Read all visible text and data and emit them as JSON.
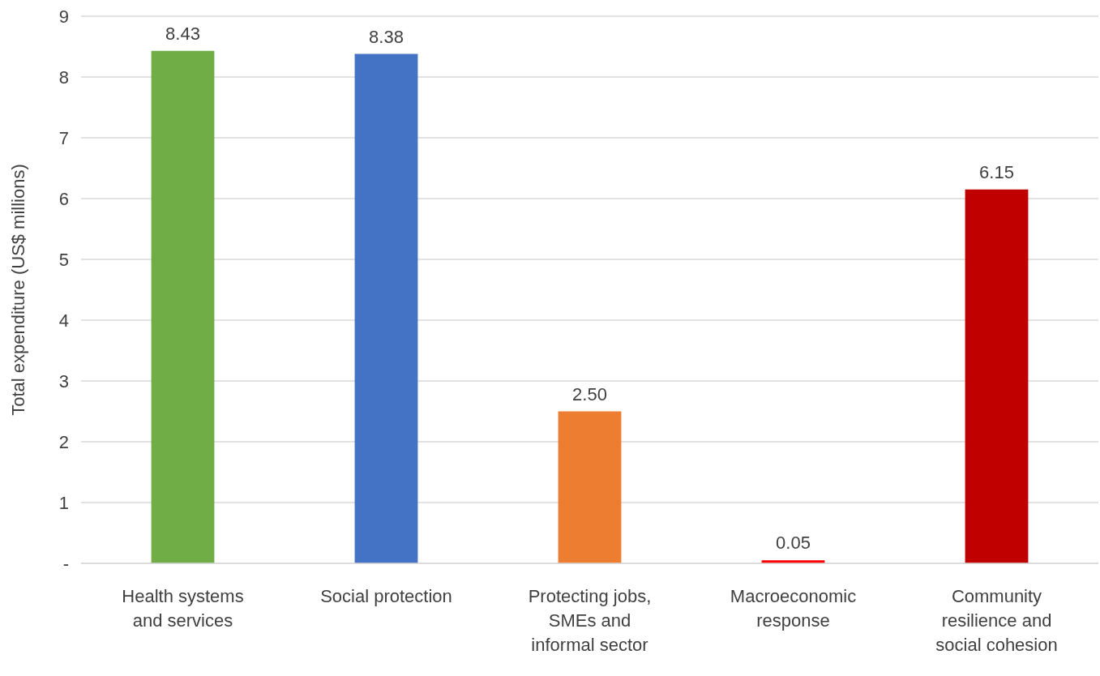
{
  "chart_data": {
    "type": "bar",
    "ylabel": "Total expenditure (US$ millions)",
    "categories": [
      "Health systems\nand services",
      "Social protection",
      "Protecting jobs,\nSMEs and\ninformal sector",
      "Macroeconomic\nresponse",
      "Community\nresilience and\nsocial cohesion"
    ],
    "values": [
      8.43,
      8.38,
      2.5,
      0.05,
      6.15
    ],
    "colors": [
      "#70ad47",
      "#4472c4",
      "#ed7d31",
      "#ff0000",
      "#c00000"
    ],
    "value_labels": [
      "8.43",
      "8.38",
      "2.50",
      "0.05",
      "6.15"
    ],
    "ylim": [
      0,
      9
    ],
    "yticks": [
      {
        "value": 0,
        "label": "-"
      },
      1,
      2,
      3,
      4,
      5,
      6,
      7,
      8,
      9
    ],
    "grid": "y"
  }
}
